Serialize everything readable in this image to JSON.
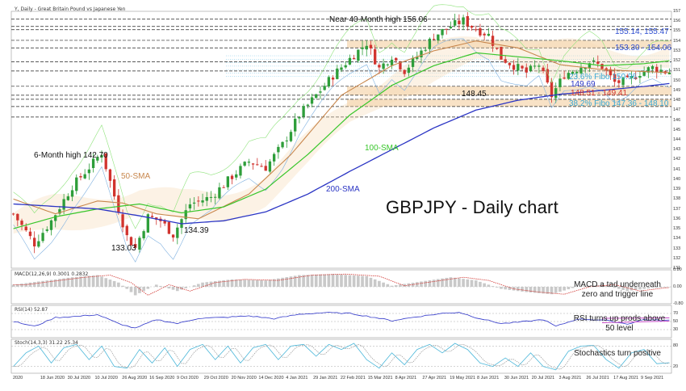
{
  "header": {
    "main": "Y, Daily - Great Britain Pound vs Japanese Yen",
    "macd": "MACD(12,26,9) 0.3001 0.2832",
    "rsi": "RSI(14) 52.87",
    "stoch": "Stoch(14,3,3) 31.22 25.34"
  },
  "title": "GBPJPY - Daily chart",
  "annotations": {
    "near_high": "Near 40-Month high 156.06",
    "six_month_high": "6-Month high 142.70",
    "low_133": "133.03",
    "low_134": "134.39",
    "low_148": "148.45",
    "sma50": "50-SMA",
    "sma100": "100-SMA",
    "sma200": "200-SMA",
    "lvl_155": "155.14, 155.47",
    "lvl_153": "153.30 - 154.06",
    "lvl_fibo236": "23.6% Fibo 150.96",
    "lvl_149": "149.69",
    "lvl_148": "148.51 - 149.41",
    "lvl_fibo382": "38.2% Fibo 147.36 - 148.10"
  },
  "indicator_notes": {
    "macd": "MACD a tad underneath zero and trigger line",
    "rsi": "RSI turns up prods above 50 level",
    "stoch": "Stochastics turn positive"
  },
  "x_labels": [
    "2020",
    "18 Jun 2020",
    "30 Jul 2020",
    "10 Jul 2020",
    "26 Aug 2020",
    "16 Sep 2020",
    "9 Oct 2020",
    "29 Oct 2020",
    "20 Nov 2020",
    "14 Dec 2020",
    "4 Jan 2021",
    "29 Jan 2021",
    "22 Feb 2021",
    "15 Mar 2021",
    "8 Apr 2021",
    "27 Apr 2021",
    "19 May 2021",
    "8 Jun 2021",
    "30 Jun 2021",
    "20 Jul 2021",
    "3 Aug 2021",
    "26 Jul 2021",
    "17 Aug 2021",
    "9 Sep 2021"
  ],
  "y_labels": [
    "157",
    "156",
    "155",
    "154",
    "153",
    "152",
    "151",
    "150",
    "149",
    "148",
    "147",
    "146",
    "145",
    "144",
    "143",
    "142",
    "141",
    "140",
    "139",
    "138",
    "137",
    "136",
    "135",
    "134",
    "133",
    "132",
    "131"
  ],
  "macd_y_labels": [
    "0.80",
    "0.00",
    "-0.80"
  ],
  "rsi_y_labels": [
    "70",
    "50",
    "30"
  ],
  "stoch_y_labels": [
    "80",
    "20"
  ],
  "colors": {
    "candle_up": "#2e9e3a",
    "candle_down": "#d1342f",
    "sma50": "#c8874d",
    "sma100": "#38c62b",
    "sma200": "#2b35c4",
    "band": "#f5d3a8",
    "fib": "#6cc3e8",
    "macd_hist": "#c9c9c9",
    "rsi": "#2e35c9",
    "stoch_k": "#49b6d9",
    "stoch_d": "#999999"
  },
  "chart_data": {
    "type": "candlestick",
    "title": "GBPJPY - Daily chart",
    "ylim": [
      131,
      157
    ],
    "horizontal_levels": [
      155.14,
      155.47,
      153.3,
      154.06,
      150.96,
      149.69,
      148.51,
      149.41,
      147.36,
      148.1
    ],
    "close_anchors": [
      [
        0,
        136.5
      ],
      [
        5,
        133.5
      ],
      [
        9,
        135.8
      ],
      [
        14,
        139.3
      ],
      [
        18,
        141.2
      ],
      [
        21,
        142.7
      ],
      [
        24,
        138.3
      ],
      [
        27,
        134.2
      ],
      [
        29,
        133.03
      ],
      [
        32,
        136.2
      ],
      [
        35,
        135.8
      ],
      [
        38,
        134.39
      ],
      [
        42,
        137.5
      ],
      [
        47,
        138.2
      ],
      [
        52,
        140.3
      ],
      [
        56,
        141.8
      ],
      [
        60,
        141.2
      ],
      [
        64,
        143.5
      ],
      [
        68,
        146.5
      ],
      [
        72,
        148.5
      ],
      [
        76,
        150.5
      ],
      [
        80,
        152.2
      ],
      [
        84,
        153.8
      ],
      [
        87,
        151.2
      ],
      [
        90,
        152.5
      ],
      [
        93,
        151.0
      ],
      [
        96,
        152.4
      ],
      [
        100,
        154.5
      ],
      [
        104,
        155.5
      ],
      [
        107,
        156.06
      ],
      [
        110,
        155.2
      ],
      [
        113,
        154.6
      ],
      [
        116,
        152.3
      ],
      [
        119,
        151.5
      ],
      [
        122,
        150.8
      ],
      [
        125,
        151.6
      ],
      [
        128,
        148.45
      ],
      [
        131,
        150.6
      ],
      [
        134,
        151.2
      ],
      [
        137,
        151.9
      ],
      [
        140,
        151.4
      ],
      [
        143,
        149.8
      ],
      [
        146,
        149.9
      ],
      [
        149,
        150.8
      ],
      [
        152,
        151.3
      ],
      [
        155,
        150.9
      ]
    ],
    "sma50": [
      [
        0,
        138
      ],
      [
        10,
        136.5
      ],
      [
        20,
        137.8
      ],
      [
        26,
        137.6
      ],
      [
        34,
        136.5
      ],
      [
        44,
        136.0
      ],
      [
        56,
        138.5
      ],
      [
        66,
        142.5
      ],
      [
        78,
        148.5
      ],
      [
        90,
        151.5
      ],
      [
        100,
        153.0
      ],
      [
        110,
        154.0
      ],
      [
        120,
        153.3
      ],
      [
        130,
        151.6
      ],
      [
        140,
        151.1
      ],
      [
        150,
        150.9
      ],
      [
        156,
        150.8
      ]
    ],
    "sma100": [
      [
        0,
        135
      ],
      [
        10,
        136.2
      ],
      [
        20,
        137.0
      ],
      [
        30,
        137.5
      ],
      [
        40,
        136.6
      ],
      [
        50,
        137.2
      ],
      [
        60,
        139.0
      ],
      [
        70,
        142.5
      ],
      [
        80,
        146.5
      ],
      [
        90,
        149.5
      ],
      [
        100,
        151.5
      ],
      [
        110,
        152.8
      ],
      [
        120,
        152.4
      ],
      [
        130,
        152.0
      ],
      [
        140,
        151.5
      ],
      [
        150,
        151.7
      ],
      [
        156,
        152.0
      ]
    ],
    "sma200": [
      [
        0,
        137.5
      ],
      [
        20,
        137.0
      ],
      [
        30,
        136.3
      ],
      [
        40,
        135.5
      ],
      [
        50,
        135.8
      ],
      [
        60,
        136.7
      ],
      [
        70,
        138.5
      ],
      [
        80,
        140.8
      ],
      [
        90,
        143.0
      ],
      [
        100,
        145.2
      ],
      [
        110,
        147.0
      ],
      [
        120,
        148.0
      ],
      [
        130,
        148.6
      ],
      [
        140,
        149.0
      ],
      [
        150,
        149.4
      ],
      [
        156,
        149.69
      ]
    ],
    "macd_range": [
      -0.8,
      0.8
    ],
    "macd": [
      [
        0,
        0.1
      ],
      [
        8,
        0.3
      ],
      [
        14,
        0.45
      ],
      [
        20,
        0.55
      ],
      [
        25,
        0.2
      ],
      [
        29,
        -0.4
      ],
      [
        34,
        0.1
      ],
      [
        39,
        -0.2
      ],
      [
        45,
        0.2
      ],
      [
        52,
        0.35
      ],
      [
        60,
        0.3
      ],
      [
        68,
        0.55
      ],
      [
        76,
        0.6
      ],
      [
        84,
        0.5
      ],
      [
        90,
        0.05
      ],
      [
        97,
        0.25
      ],
      [
        104,
        0.45
      ],
      [
        110,
        0.3
      ],
      [
        116,
        -0.1
      ],
      [
        122,
        -0.25
      ],
      [
        128,
        -0.35
      ],
      [
        134,
        0.0
      ],
      [
        140,
        0.1
      ],
      [
        146,
        -0.2
      ],
      [
        152,
        -0.05
      ],
      [
        156,
        -0.02
      ]
    ],
    "rsi": [
      [
        0,
        50
      ],
      [
        5,
        38
      ],
      [
        10,
        60
      ],
      [
        14,
        62
      ],
      [
        20,
        67
      ],
      [
        25,
        45
      ],
      [
        29,
        33
      ],
      [
        34,
        55
      ],
      [
        39,
        45
      ],
      [
        44,
        58
      ],
      [
        50,
        60
      ],
      [
        56,
        64
      ],
      [
        62,
        57
      ],
      [
        68,
        68
      ],
      [
        74,
        72
      ],
      [
        80,
        70
      ],
      [
        86,
        60
      ],
      [
        90,
        52
      ],
      [
        96,
        62
      ],
      [
        102,
        70
      ],
      [
        106,
        73
      ],
      [
        110,
        60
      ],
      [
        116,
        45
      ],
      [
        120,
        48
      ],
      [
        126,
        55
      ],
      [
        129,
        38
      ],
      [
        134,
        56
      ],
      [
        140,
        54
      ],
      [
        146,
        44
      ],
      [
        150,
        55
      ],
      [
        153,
        53
      ],
      [
        156,
        52.87
      ]
    ],
    "stoch_k": [
      [
        0,
        20
      ],
      [
        3,
        60
      ],
      [
        6,
        80
      ],
      [
        9,
        30
      ],
      [
        12,
        75
      ],
      [
        15,
        85
      ],
      [
        18,
        40
      ],
      [
        21,
        80
      ],
      [
        24,
        20
      ],
      [
        27,
        15
      ],
      [
        30,
        70
      ],
      [
        33,
        30
      ],
      [
        36,
        75
      ],
      [
        39,
        20
      ],
      [
        42,
        70
      ],
      [
        45,
        85
      ],
      [
        48,
        40
      ],
      [
        51,
        80
      ],
      [
        54,
        30
      ],
      [
        57,
        75
      ],
      [
        60,
        85
      ],
      [
        63,
        40
      ],
      [
        66,
        80
      ],
      [
        69,
        85
      ],
      [
        72,
        50
      ],
      [
        75,
        85
      ],
      [
        78,
        70
      ],
      [
        81,
        88
      ],
      [
        84,
        40
      ],
      [
        87,
        15
      ],
      [
        90,
        60
      ],
      [
        93,
        25
      ],
      [
        96,
        70
      ],
      [
        99,
        85
      ],
      [
        102,
        60
      ],
      [
        105,
        88
      ],
      [
        108,
        70
      ],
      [
        111,
        30
      ],
      [
        114,
        20
      ],
      [
        117,
        45
      ],
      [
        120,
        20
      ],
      [
        123,
        60
      ],
      [
        126,
        20
      ],
      [
        129,
        10
      ],
      [
        132,
        65
      ],
      [
        135,
        80
      ],
      [
        138,
        82
      ],
      [
        141,
        40
      ],
      [
        144,
        15
      ],
      [
        147,
        60
      ],
      [
        150,
        70
      ],
      [
        153,
        28
      ],
      [
        156,
        31
      ]
    ]
  }
}
